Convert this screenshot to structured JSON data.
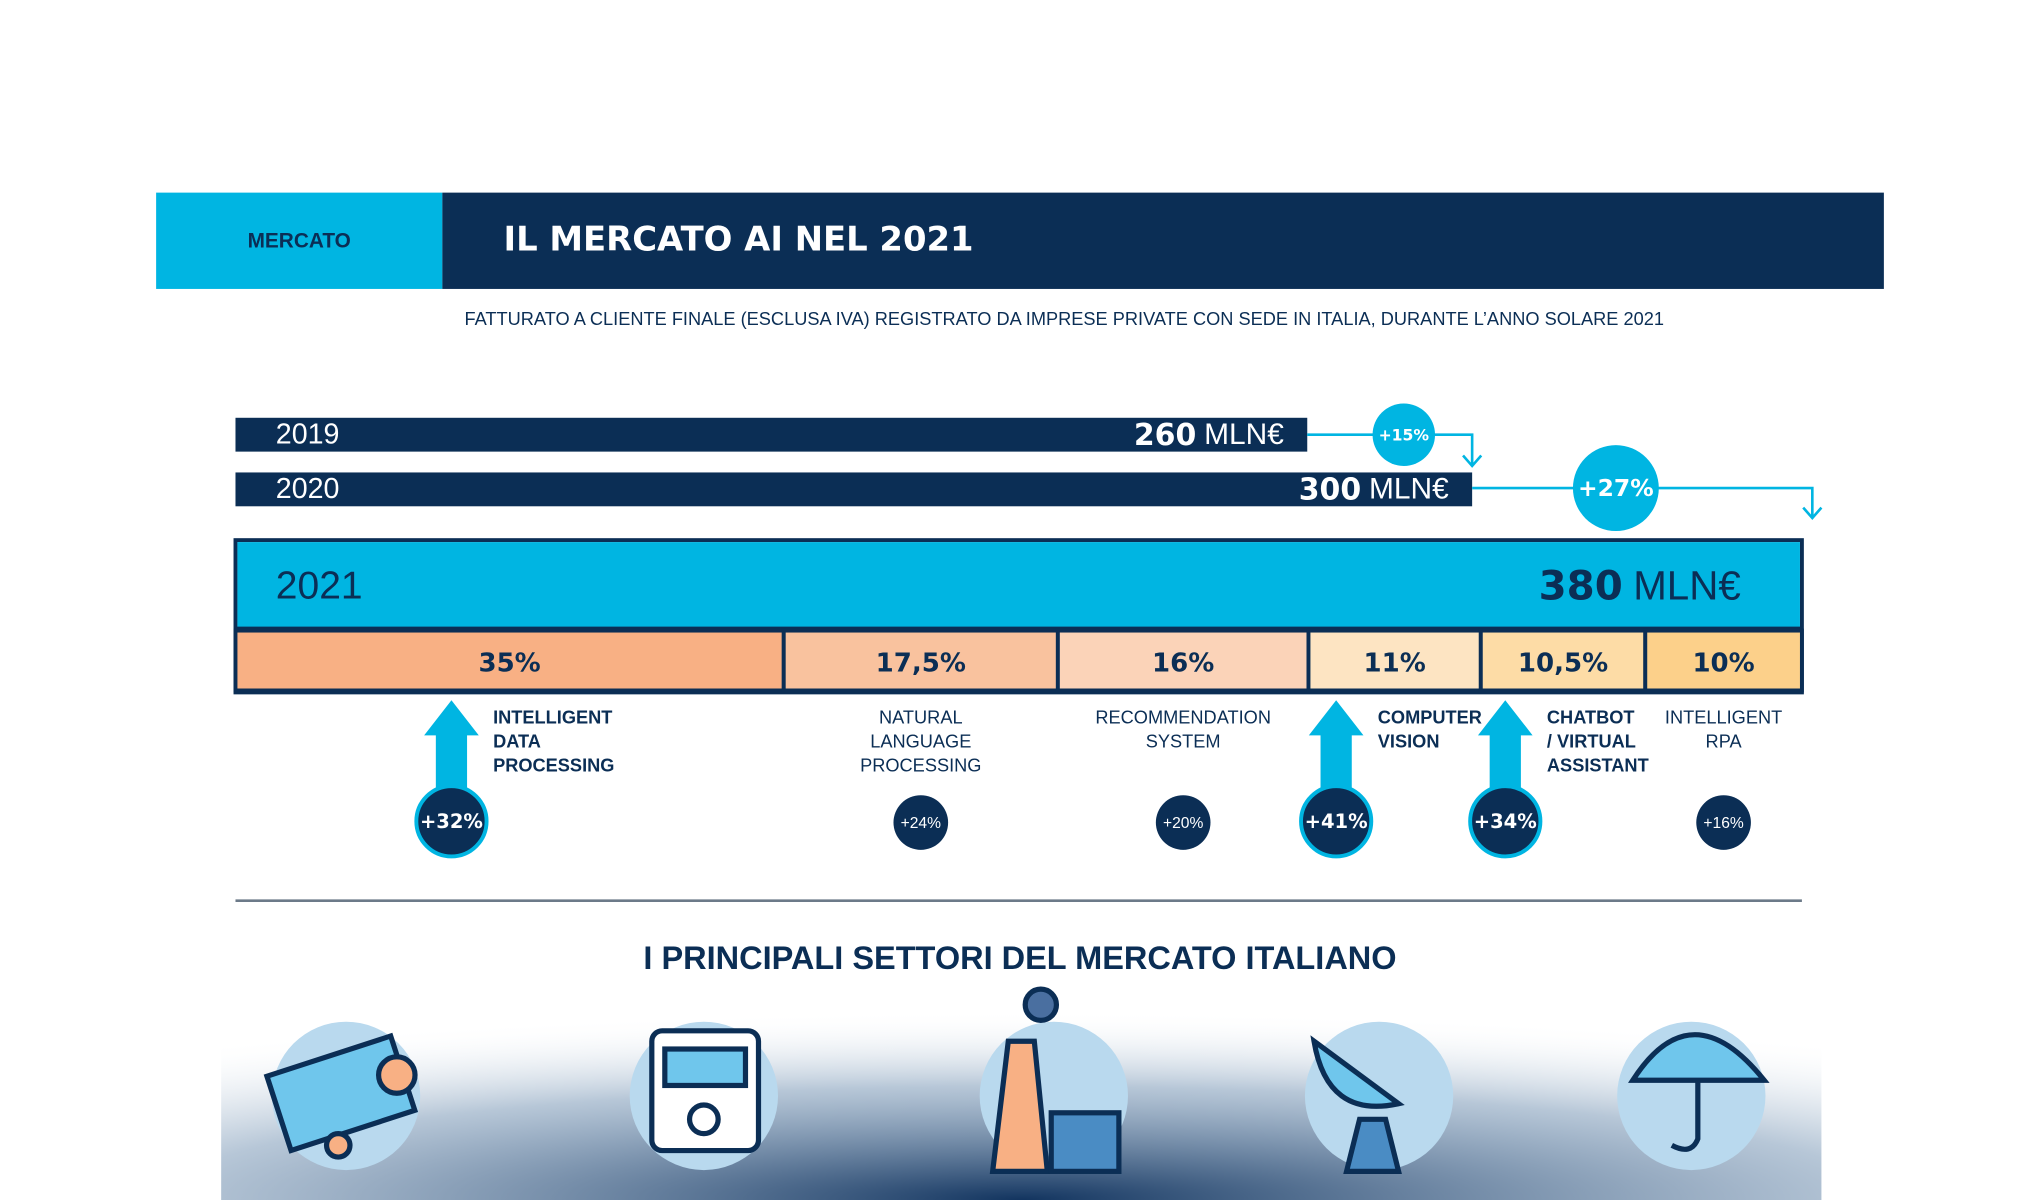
{
  "header": {
    "section": "MERCATO",
    "title": "IL MERCATO AI NEL 2021",
    "subtitle": "FATTURATO A CLIENTE FINALE (ESCLUSA IVA) REGISTRATO DA IMPRESE PRIVATE CON SEDE IN ITALIA, DURANTE L’ANNO SOLARE 2021"
  },
  "unit": "MLN€",
  "years": [
    {
      "year": "2019",
      "value": 260
    },
    {
      "year": "2020",
      "value": 300
    },
    {
      "year": "2021",
      "value": 380
    }
  ],
  "year_growth": [
    "+15%",
    "+27%"
  ],
  "segments": [
    {
      "share": {
        "value": 35,
        "label": "35%"
      },
      "lines": [
        "INTELLIGENT",
        "DATA",
        "PROCESSING"
      ],
      "growth": "+32%"
    },
    {
      "share": {
        "value": 17.5,
        "label": "17,5%"
      },
      "lines": [
        "NATURAL",
        "LANGUAGE",
        "PROCESSING"
      ],
      "growth": "+24%"
    },
    {
      "share": {
        "value": 16,
        "label": "16%"
      },
      "lines": [
        "RECOMMENDATION",
        "SYSTEM"
      ],
      "growth": "+20%"
    },
    {
      "share": {
        "value": 11,
        "label": "11%"
      },
      "lines": [
        "COMPUTER",
        "VISION"
      ],
      "growth": "+41%"
    },
    {
      "share": {
        "value": 10.5,
        "label": "10,5%"
      },
      "lines": [
        "CHATBOT",
        "/ VIRTUAL",
        "ASSISTANT"
      ],
      "growth": "+34%"
    },
    {
      "share": {
        "value": 10,
        "label": "10%"
      },
      "lines": [
        "INTELLIGENT",
        "RPA"
      ],
      "growth": "+16%"
    }
  ],
  "sectors_title": "I PRINCIPALI SETTORI DEL MERCATO ITALIANO"
}
